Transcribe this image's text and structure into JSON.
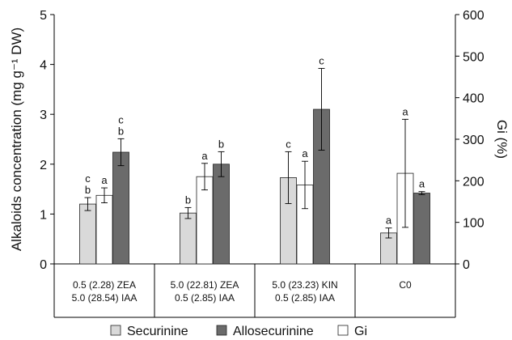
{
  "chart_data": {
    "type": "bar",
    "title": "",
    "ylabel_left": "Alkaloids concentration (mg g⁻¹ DW)",
    "ylabel_right": "Gi (%)",
    "ylim_left": [
      0,
      5
    ],
    "ylim_right": [
      0,
      600
    ],
    "yticks_left": [
      "0",
      "1",
      "2",
      "3",
      "4",
      "5"
    ],
    "yticks_right": [
      "0",
      "100",
      "200",
      "300",
      "400",
      "500",
      "600"
    ],
    "categories": [
      {
        "line1": "0.5 (2.28) ZEA",
        "line2": "5.0 (28.54) IAA"
      },
      {
        "line1": "5.0 (22.81) ZEA",
        "line2": "0.5 (2.85) IAA"
      },
      {
        "line1": "5.0 (23.23) KIN",
        "line2": "0.5 (2.85) IAA"
      },
      {
        "line1": "C0",
        "line2": ""
      }
    ],
    "series": [
      {
        "name": "Securinine",
        "axis": "left",
        "color": "#d9d9d9",
        "values": [
          1.2,
          1.02,
          1.73,
          0.62
        ],
        "err": [
          0.13,
          0.11,
          0.52,
          0.1
        ],
        "letters": [
          [
            "c",
            "b"
          ],
          [
            "b"
          ],
          [
            "c"
          ],
          [
            "a"
          ]
        ]
      },
      {
        "name": "Gi",
        "axis": "right",
        "color": "#ffffff",
        "values": [
          165,
          210,
          190,
          218
        ],
        "err": [
          18,
          32,
          57,
          130
        ],
        "letters": [
          [
            "a"
          ],
          [
            "a"
          ],
          [
            "a"
          ],
          [
            "a"
          ]
        ]
      },
      {
        "name": "Allosecurinine",
        "axis": "left",
        "color": "#6b6b6b",
        "values": [
          2.24,
          2.0,
          3.1,
          1.42
        ],
        "err": [
          0.27,
          0.25,
          0.82,
          0.03
        ],
        "letters": [
          [
            "c",
            "b"
          ],
          [
            "b"
          ],
          [
            "c"
          ],
          [
            "a"
          ]
        ]
      }
    ],
    "legend": {
      "position": "bottom",
      "items": [
        {
          "label": "Securinine",
          "color": "#d9d9d9"
        },
        {
          "label": "Allosecurinine",
          "color": "#6b6b6b"
        },
        {
          "label": "Gi",
          "color": "#ffffff"
        }
      ]
    },
    "grid": false
  }
}
